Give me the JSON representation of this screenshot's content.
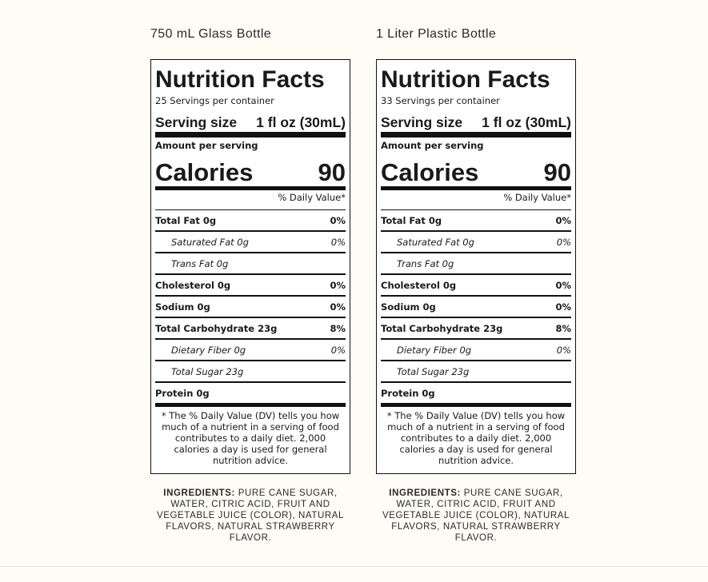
{
  "labels": [
    {
      "bottle": "750 mL Glass Bottle",
      "title": "Nutrition Facts",
      "servings": "25 Servings per container",
      "serving_size_label": "Serving size",
      "serving_size_value": "1 fl oz (30mL)",
      "amount_per_serving": "Amount per serving",
      "calories_label": "Calories",
      "calories_value": "90",
      "dv_header": "% Daily Value*",
      "nutrients": [
        {
          "name": "Total Fat 0g",
          "dv": "0%"
        },
        {
          "name": "Saturated Fat 0g",
          "dv": "0%"
        },
        {
          "name": "Trans Fat 0g",
          "dv": ""
        },
        {
          "name": "Cholesterol 0g",
          "dv": "0%"
        },
        {
          "name": "Sodium 0g",
          "dv": "0%"
        },
        {
          "name": "Total Carbohydrate 23g",
          "dv": "8%"
        },
        {
          "name": "Dietary Fiber 0g",
          "dv": "0%"
        },
        {
          "name": "Total Sugar 23g",
          "dv": ""
        },
        {
          "name": "Protein 0g",
          "dv": ""
        }
      ],
      "footnote": "* The % Daily Value (DV) tells you how much of a nutrient in a serving of food contributes to a daily diet. 2,000 calories a day is used for general nutrition advice.",
      "ingredients_label": "INGREDIENTS:",
      "ingredients_text": "PURE CANE SUGAR, WATER, CITRIC ACID, FRUIT AND VEGETABLE JUICE (COLOR), NATURAL FLAVORS, NATURAL STRAWBERRY FLAVOR."
    },
    {
      "bottle": "1 Liter Plastic Bottle",
      "title": "Nutrition Facts",
      "servings": "33 Servings per container",
      "serving_size_label": "Serving size",
      "serving_size_value": "1 fl oz (30mL)",
      "amount_per_serving": "Amount per serving",
      "calories_label": "Calories",
      "calories_value": "90",
      "dv_header": "% Daily Value*",
      "nutrients": [
        {
          "name": "Total Fat 0g",
          "dv": "0%"
        },
        {
          "name": "Saturated Fat 0g",
          "dv": "0%"
        },
        {
          "name": "Trans Fat 0g",
          "dv": ""
        },
        {
          "name": "Cholesterol 0g",
          "dv": "0%"
        },
        {
          "name": "Sodium 0g",
          "dv": "0%"
        },
        {
          "name": "Total Carbohydrate 23g",
          "dv": "8%"
        },
        {
          "name": "Dietary Fiber 0g",
          "dv": "0%"
        },
        {
          "name": "Total Sugar 23g",
          "dv": ""
        },
        {
          "name": "Protein 0g",
          "dv": ""
        }
      ],
      "footnote": "* The % Daily Value (DV) tells you how much of a nutrient in a serving of food contributes to a daily diet. 2,000 calories a day is used for general nutrition advice.",
      "ingredients_label": "INGREDIENTS:",
      "ingredients_text": "PURE CANE SUGAR, WATER, CITRIC ACID, FRUIT AND VEGETABLE JUICE (COLOR), NATURAL FLAVORS, NATURAL STRAWBERRY FLAVOR."
    }
  ]
}
